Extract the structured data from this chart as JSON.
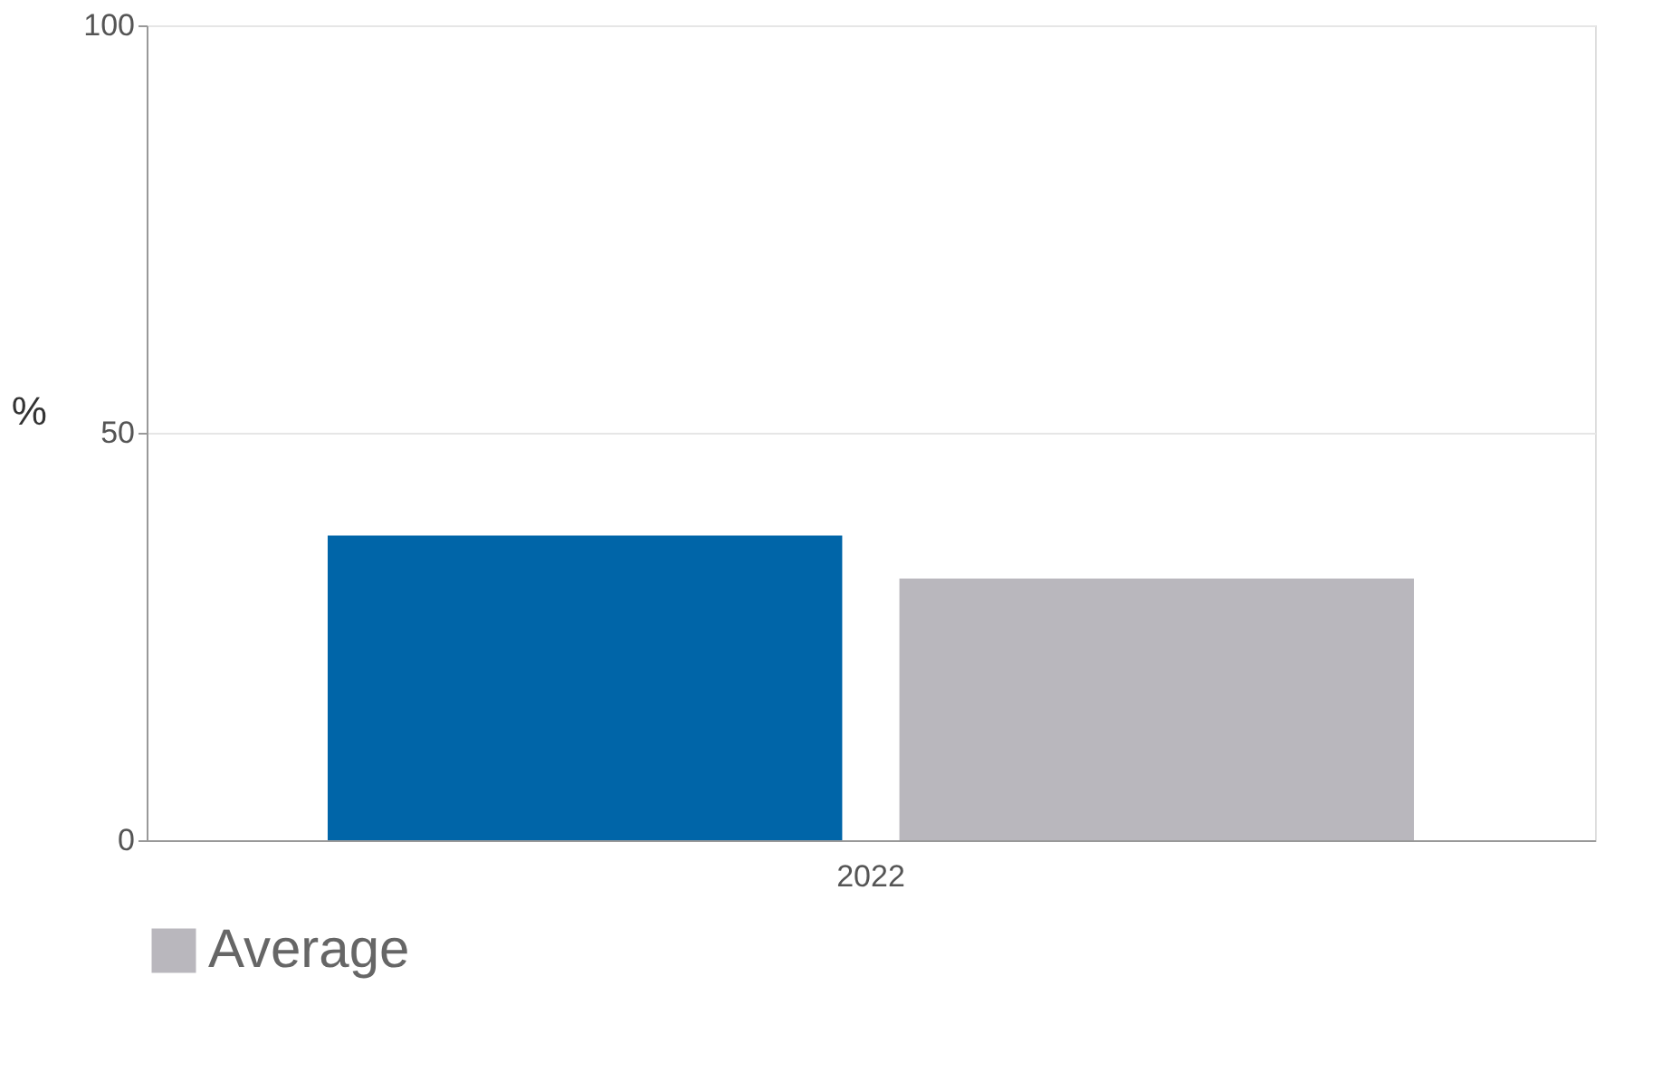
{
  "chart_data": {
    "type": "bar",
    "ylabel": "%",
    "categories": [
      "2022"
    ],
    "series": [
      {
        "color": "#0065a8",
        "values": [
          37.4
        ]
      },
      {
        "name": "Average",
        "color": "#b9b7bd",
        "values": [
          32.1
        ]
      }
    ],
    "ylim": [
      0,
      100
    ],
    "yticks": [
      0,
      50,
      100
    ],
    "grid": "y",
    "legend": "bottom"
  }
}
